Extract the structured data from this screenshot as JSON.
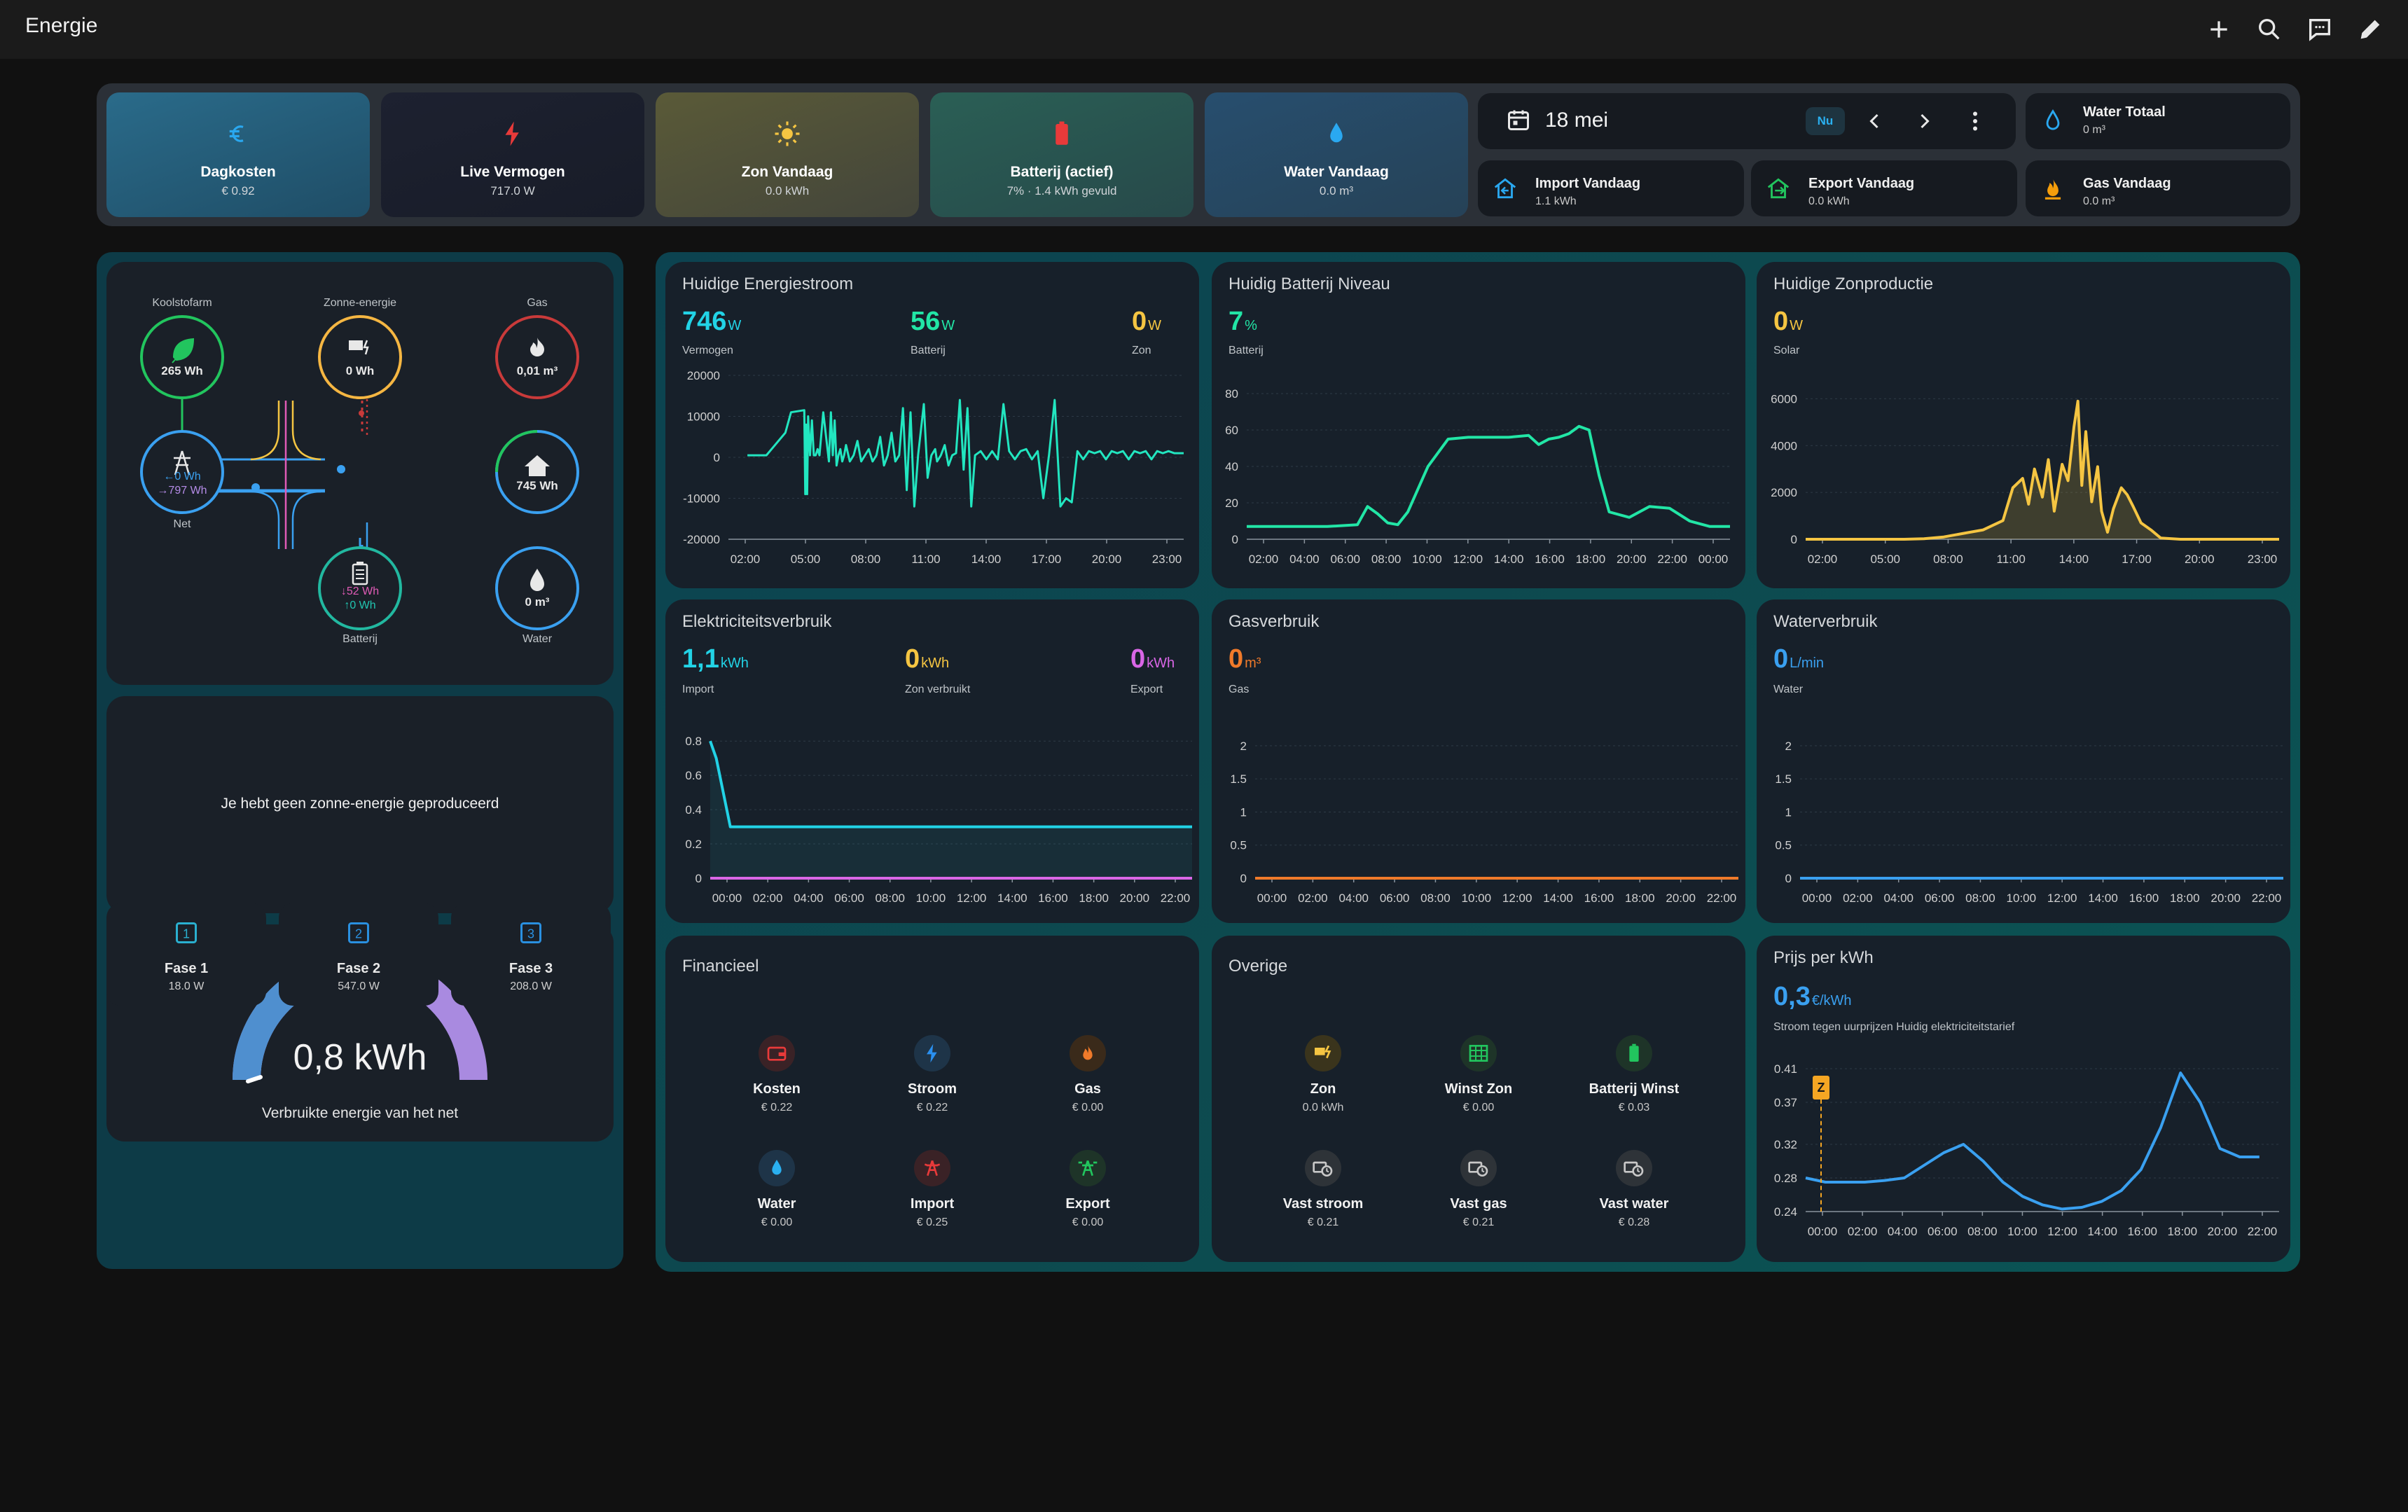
{
  "app": {
    "title": "Energie"
  },
  "header": {
    "tiles": [
      {
        "label": "Dagkosten",
        "value": "€ 0.92",
        "icon": "euro-icon"
      },
      {
        "label": "Live Vermogen",
        "value": "717.0 W",
        "icon": "lightning-icon"
      },
      {
        "label": "Zon Vandaag",
        "value": "0.0 kWh",
        "icon": "sun-icon"
      },
      {
        "label": "Batterij (actief)",
        "value": "7% · 1.4 kWh gevuld",
        "icon": "battery-icon"
      },
      {
        "label": "Water Vandaag",
        "value": "0.0 m³",
        "icon": "water-drop-icon"
      }
    ],
    "date": {
      "label": "18 mei",
      "now_button": "Nu"
    },
    "chips": [
      {
        "label": "Water Totaal",
        "value": "0 m³"
      },
      {
        "label": "Import Vandaag",
        "value": "1.1 kWh"
      },
      {
        "label": "Export Vandaag",
        "value": "0.0 kWh"
      },
      {
        "label": "Gas Vandaag",
        "value": "0.0 m³"
      }
    ]
  },
  "flow": {
    "fossil": {
      "label": "Koolstofarm",
      "value": "265 Wh"
    },
    "solar": {
      "label": "Zonne-energie",
      "value": "0 Wh"
    },
    "gas": {
      "label": "Gas",
      "value": "0,01 m³"
    },
    "grid": {
      "label": "Net",
      "in": "←0 Wh",
      "out": "→797 Wh"
    },
    "home": {
      "value": "745 Wh"
    },
    "battery": {
      "label": "Batterij",
      "in": "↓52 Wh",
      "out": "↑0 Wh"
    },
    "water": {
      "label": "Water",
      "value": "0 m³"
    }
  },
  "no_solar_message": "Je hebt geen zonne-energie geproduceerd",
  "gauge": {
    "value": "0,8 kWh",
    "label": "Verbruikte energie van het net",
    "fraction": 0.5
  },
  "phases": [
    {
      "label": "Fase 1",
      "value": "18.0 W",
      "number": "1"
    },
    {
      "label": "Fase 2",
      "value": "547.0 W",
      "number": "2"
    },
    {
      "label": "Fase 3",
      "value": "208.0 W",
      "number": "3"
    }
  ],
  "cards": {
    "energy_flow": {
      "title": "Huidige Energiestroom",
      "stats": [
        {
          "value": "746",
          "unit": "W",
          "label": "Vermogen",
          "color": "#22d3e6"
        },
        {
          "value": "56",
          "unit": "W",
          "label": "Batterij",
          "color": "#22e6a6"
        },
        {
          "value": "0",
          "unit": "W",
          "label": "Zon",
          "color": "#f5c542"
        }
      ]
    },
    "battery_level": {
      "title": "Huidig Batterij Niveau",
      "stats": [
        {
          "value": "7",
          "unit": "%",
          "label": "Batterij",
          "color": "#22e6a6"
        }
      ]
    },
    "solar_production": {
      "title": "Huidige Zonproductie",
      "stats": [
        {
          "value": "0",
          "unit": "W",
          "label": "Solar",
          "color": "#f5c542"
        }
      ]
    },
    "electricity": {
      "title": "Elektriciteitsverbruik",
      "stats": [
        {
          "value": "1,1",
          "unit": "kWh",
          "label": "Import",
          "color": "#22d3e6"
        },
        {
          "value": "0",
          "unit": "kWh",
          "label": "Zon verbruikt",
          "color": "#f5c542"
        },
        {
          "value": "0",
          "unit": "kWh",
          "label": "Export",
          "color": "#d966e6"
        }
      ]
    },
    "gas": {
      "title": "Gasverbruik",
      "stats": [
        {
          "value": "0",
          "unit": "m³",
          "label": "Gas",
          "color": "#f07a2a"
        }
      ]
    },
    "water": {
      "title": "Waterverbruik",
      "stats": [
        {
          "value": "0",
          "unit": "L/min",
          "label": "Water",
          "color": "#3aa0f0"
        }
      ]
    },
    "financial": {
      "title": "Financieel",
      "items": [
        {
          "label": "Kosten",
          "value": "€ 0.22",
          "icon": "wallet-icon"
        },
        {
          "label": "Stroom",
          "value": "€ 0.22",
          "icon": "lightning-icon"
        },
        {
          "label": "Gas",
          "value": "€ 0.00",
          "icon": "fire-icon"
        },
        {
          "label": "Water",
          "value": "€ 0.00",
          "icon": "water-drop-icon"
        },
        {
          "label": "Import",
          "value": "€ 0.25",
          "icon": "transmission-tower-import-icon"
        },
        {
          "label": "Export",
          "value": "€ 0.00",
          "icon": "transmission-tower-export-icon"
        }
      ]
    },
    "other": {
      "title": "Overige",
      "items": [
        {
          "label": "Zon",
          "value": "0.0 kWh",
          "icon": "solar-power-icon"
        },
        {
          "label": "Winst Zon",
          "value": "€ 0.00",
          "icon": "solar-panel-icon"
        },
        {
          "label": "Batterij Winst",
          "value": "€ 0.03",
          "icon": "battery-icon"
        },
        {
          "label": "Vast stroom",
          "value": "€ 0.21",
          "icon": "cash-clock-icon"
        },
        {
          "label": "Vast gas",
          "value": "€ 0.21",
          "icon": "cash-clock-icon"
        },
        {
          "label": "Vast water",
          "value": "€ 0.28",
          "icon": "cash-clock-icon"
        }
      ]
    },
    "price": {
      "title": "Prijs per kWh",
      "stats": [
        {
          "value": "0,3",
          "unit": "€/kWh",
          "label": "Stroom tegen uurprijzen Huidig elektriciteitstarief",
          "color": "#3aa0f0"
        }
      ],
      "marker": "Z"
    }
  },
  "chart_data": [
    {
      "id": "energy_flow",
      "type": "line",
      "x_ticks": [
        "02:00",
        "05:00",
        "08:00",
        "11:00",
        "14:00",
        "17:00",
        "20:00",
        "23:00"
      ],
      "ylim": [
        -20000,
        20000
      ],
      "y_ticks": [
        20000,
        10000,
        0,
        -10000,
        -20000
      ],
      "series": [
        {
          "color": "#22e6c0",
          "x": [
            1,
            2,
            3,
            3.3,
            4,
            4.05,
            4.1,
            4.15,
            4.2,
            4.3,
            4.4,
            4.5,
            4.6,
            4.7,
            4.8,
            5,
            5.3,
            5.4,
            5.5,
            5.6,
            5.7,
            5.8,
            5.9,
            6,
            6.1,
            6.2,
            6.4,
            6.6,
            6.8,
            7,
            7.2,
            7.4,
            7.6,
            7.8,
            8,
            8.2,
            8.4,
            8.6,
            8.8,
            9,
            9.2,
            9.4,
            9.6,
            9.8,
            10,
            10.3,
            10.5,
            10.7,
            10.9,
            11,
            11.2,
            11.4,
            11.6,
            11.8,
            12,
            12.2,
            12.4,
            12.6,
            12.8,
            13,
            13.3,
            13.6,
            13.9,
            14.2,
            14.5,
            14.8,
            15.1,
            15.4,
            15.7,
            16,
            16.3,
            16.6,
            16.9,
            17.2,
            17.5,
            17.8,
            18.1,
            18.4,
            18.7,
            19,
            19.3,
            19.6,
            19.9,
            20.2,
            20.5,
            20.8,
            21.1,
            21.4,
            21.7,
            22,
            22.3,
            22.6,
            22.9,
            23.2,
            23.5,
            24
          ],
          "y": [
            500,
            500,
            6000,
            11000,
            11500,
            -9000,
            8000,
            -9000,
            10000,
            500,
            9000,
            500,
            500,
            2000,
            500,
            11000,
            -1000,
            11000,
            500,
            9000,
            -2000,
            500,
            2000,
            -1000,
            500,
            3000,
            -1000,
            500,
            4000,
            -1000,
            500,
            2000,
            -1000,
            500,
            5000,
            -2000,
            500,
            6000,
            -1000,
            500,
            12000,
            -8000,
            11000,
            -12000,
            500,
            13000,
            -5000,
            500,
            2000,
            -1000,
            500,
            3000,
            -2000,
            500,
            1000,
            14000,
            -3000,
            12000,
            -12000,
            500,
            1500,
            -500,
            1500,
            -500,
            13000,
            1500,
            -500,
            1500,
            2000,
            -500,
            1500,
            -10000,
            500,
            14000,
            -12000,
            -10000,
            -11000,
            1500,
            -500,
            1500,
            1000,
            1500,
            -500,
            1500,
            1000,
            1500,
            -500,
            1500,
            1000,
            1500,
            -500,
            1500,
            1000,
            1500,
            1000,
            1000
          ]
        }
      ]
    },
    {
      "id": "battery_level",
      "type": "line",
      "x_ticks": [
        "02:00",
        "04:00",
        "06:00",
        "08:00",
        "10:00",
        "12:00",
        "14:00",
        "16:00",
        "18:00",
        "20:00",
        "22:00",
        "00:00"
      ],
      "ylim": [
        0,
        90
      ],
      "y_ticks": [
        80,
        60,
        40,
        20,
        0
      ],
      "series": [
        {
          "color": "#22e6a6",
          "x": [
            0,
            2,
            4,
            5.5,
            6,
            6.5,
            7,
            7.5,
            8,
            9,
            10,
            11,
            12,
            13,
            14,
            14.5,
            15,
            15.5,
            16,
            16.5,
            17,
            17.5,
            18,
            19,
            20,
            21,
            22,
            23,
            24
          ],
          "y": [
            7,
            7,
            7,
            8,
            18,
            14,
            9,
            8,
            15,
            40,
            55,
            56,
            56,
            56,
            57,
            52,
            55,
            56,
            58,
            62,
            60,
            35,
            15,
            12,
            18,
            17,
            10,
            7,
            7
          ]
        }
      ]
    },
    {
      "id": "solar_production",
      "type": "area",
      "x_ticks": [
        "02:00",
        "05:00",
        "08:00",
        "11:00",
        "14:00",
        "17:00",
        "20:00",
        "23:00"
      ],
      "ylim": [
        0,
        7000
      ],
      "y_ticks": [
        6000,
        4000,
        2000,
        0
      ],
      "series": [
        {
          "color": "#f5c542",
          "x": [
            0,
            5,
            6,
            7,
            8,
            9,
            10,
            10.5,
            11,
            11.3,
            11.6,
            12,
            12.3,
            12.6,
            13,
            13.3,
            13.6,
            13.8,
            14,
            14.2,
            14.5,
            14.8,
            15,
            15.3,
            15.6,
            16,
            16.3,
            16.6,
            17,
            17.5,
            18,
            19,
            20,
            24
          ],
          "y": [
            0,
            0,
            20,
            100,
            250,
            400,
            800,
            2200,
            2600,
            1500,
            3000,
            1800,
            3400,
            1200,
            3200,
            2500,
            4800,
            5900,
            2300,
            4600,
            1600,
            3100,
            1200,
            300,
            1300,
            2200,
            1900,
            1400,
            700,
            400,
            50,
            0,
            0,
            0
          ]
        }
      ]
    },
    {
      "id": "electricity",
      "type": "line",
      "x_ticks": [
        "00:00",
        "02:00",
        "04:00",
        "06:00",
        "08:00",
        "10:00",
        "12:00",
        "14:00",
        "16:00",
        "18:00",
        "20:00",
        "22:00"
      ],
      "ylim": [
        0,
        0.85
      ],
      "y_ticks": [
        0.8,
        0.6,
        0.4,
        0.2,
        0.0
      ],
      "series": [
        {
          "name": "Import",
          "color": "#22d3e6",
          "x": [
            0,
            0.3,
            1,
            24
          ],
          "y": [
            0.8,
            0.7,
            0.3,
            0.3
          ]
        },
        {
          "name": "Export",
          "color": "#d966e6",
          "x": [
            0,
            24
          ],
          "y": [
            0,
            0
          ]
        }
      ]
    },
    {
      "id": "gas",
      "type": "line",
      "x_ticks": [
        "00:00",
        "02:00",
        "04:00",
        "06:00",
        "08:00",
        "10:00",
        "12:00",
        "14:00",
        "16:00",
        "18:00",
        "20:00",
        "22:00"
      ],
      "ylim": [
        0,
        2.2
      ],
      "y_ticks": [
        2,
        1.5,
        1,
        0.5,
        0
      ],
      "series": [
        {
          "color": "#f07a2a",
          "x": [
            0,
            24
          ],
          "y": [
            0,
            0
          ]
        }
      ]
    },
    {
      "id": "water",
      "type": "line",
      "x_ticks": [
        "00:00",
        "02:00",
        "04:00",
        "06:00",
        "08:00",
        "10:00",
        "12:00",
        "14:00",
        "16:00",
        "18:00",
        "20:00",
        "22:00"
      ],
      "ylim": [
        0,
        2.2
      ],
      "y_ticks": [
        2,
        1.5,
        1,
        0.5,
        0
      ],
      "series": [
        {
          "color": "#3aa0f0",
          "x": [
            0,
            24
          ],
          "y": [
            0,
            0
          ]
        }
      ]
    },
    {
      "id": "price",
      "type": "line",
      "x_ticks": [
        "00:00",
        "02:00",
        "04:00",
        "06:00",
        "08:00",
        "10:00",
        "12:00",
        "14:00",
        "16:00",
        "18:00",
        "20:00",
        "22:00"
      ],
      "ylim": [
        0.24,
        0.41
      ],
      "y_ticks": [
        0.41,
        0.37,
        0.32,
        0.28,
        0.24
      ],
      "series": [
        {
          "color": "#3aa0f0",
          "x": [
            0,
            1,
            2,
            3,
            4,
            5,
            6,
            7,
            8,
            9,
            10,
            11,
            12,
            13,
            14,
            15,
            16,
            17,
            18,
            19,
            20,
            21,
            22,
            23
          ],
          "y": [
            0.28,
            0.275,
            0.275,
            0.275,
            0.277,
            0.28,
            0.295,
            0.31,
            0.32,
            0.3,
            0.275,
            0.258,
            0.248,
            0.243,
            0.245,
            0.252,
            0.265,
            0.29,
            0.34,
            0.405,
            0.37,
            0.315,
            0.305,
            0.305
          ]
        }
      ]
    }
  ]
}
